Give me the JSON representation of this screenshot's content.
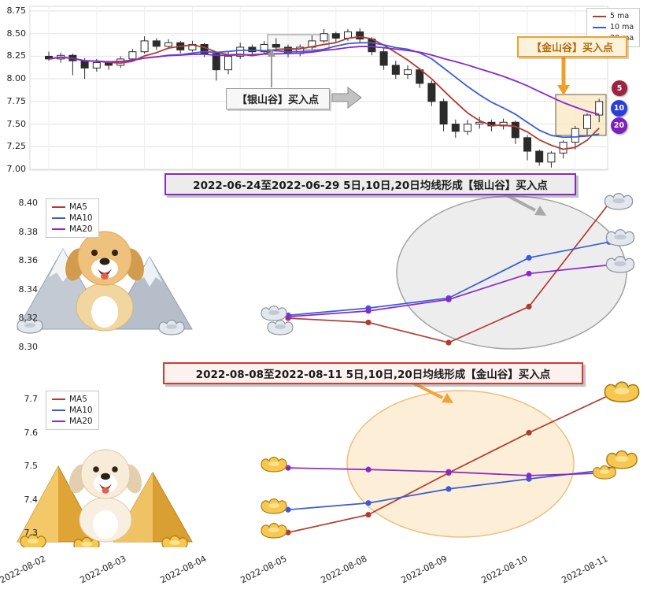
{
  "figure": {
    "background": "#ffffff"
  },
  "colors": {
    "ma5": "#b23b2e",
    "ma10": "#3a5bd9",
    "ma20": "#8b27c9",
    "grid": "#e3e3e3",
    "candle_up": "#ffffff",
    "candle_down": "#2b2b2b",
    "silver_accent": "#9a9a9a",
    "gold_accent": "#efa02a"
  },
  "chart_data": [
    {
      "name": "candlestick-panel",
      "type": "candlestick",
      "legend": [
        {
          "label": "5 ma",
          "color": "#b23b2e"
        },
        {
          "label": "10 ma",
          "color": "#3a5bd9"
        },
        {
          "label": "20 ma",
          "color": "#8b27c9"
        }
      ],
      "y_ticks": [
        "8.75",
        "8.50",
        "8.25",
        "8.00",
        "7.75",
        "7.50",
        "7.25",
        "7.00"
      ],
      "ylim": [
        6.99,
        8.8
      ],
      "ma_windows": [
        5,
        10,
        20
      ],
      "candles_ohlc": [
        [
          8.25,
          8.3,
          8.2,
          8.22
        ],
        [
          8.22,
          8.29,
          8.18,
          8.26
        ],
        [
          8.26,
          8.28,
          8.04,
          8.2
        ],
        [
          8.2,
          8.23,
          8.0,
          8.12
        ],
        [
          8.12,
          8.22,
          8.08,
          8.18
        ],
        [
          8.18,
          8.2,
          8.1,
          8.15
        ],
        [
          8.15,
          8.25,
          8.12,
          8.22
        ],
        [
          8.22,
          8.33,
          8.2,
          8.3
        ],
        [
          8.3,
          8.47,
          8.28,
          8.42
        ],
        [
          8.42,
          8.45,
          8.32,
          8.36
        ],
        [
          8.36,
          8.44,
          8.33,
          8.4
        ],
        [
          8.4,
          8.42,
          8.28,
          8.32
        ],
        [
          8.32,
          8.42,
          8.3,
          8.38
        ],
        [
          8.38,
          8.4,
          8.24,
          8.28
        ],
        [
          8.28,
          8.3,
          7.98,
          8.1
        ],
        [
          8.1,
          8.3,
          8.05,
          8.25
        ],
        [
          8.25,
          8.4,
          8.22,
          8.35
        ],
        [
          8.35,
          8.38,
          8.26,
          8.3
        ],
        [
          8.3,
          8.42,
          8.28,
          8.38
        ],
        [
          8.38,
          8.45,
          8.3,
          8.35
        ],
        [
          8.35,
          8.38,
          8.24,
          8.28
        ],
        [
          8.28,
          8.38,
          8.25,
          8.35
        ],
        [
          8.35,
          8.48,
          8.32,
          8.42
        ],
        [
          8.42,
          8.55,
          8.4,
          8.5
        ],
        [
          8.5,
          8.52,
          8.4,
          8.45
        ],
        [
          8.45,
          8.55,
          8.42,
          8.52
        ],
        [
          8.52,
          8.56,
          8.4,
          8.44
        ],
        [
          8.44,
          8.46,
          8.26,
          8.3
        ],
        [
          8.3,
          8.34,
          8.1,
          8.15
        ],
        [
          8.15,
          8.2,
          8.0,
          8.05
        ],
        [
          8.05,
          8.15,
          8.0,
          8.1
        ],
        [
          8.1,
          8.12,
          7.9,
          7.95
        ],
        [
          7.95,
          7.98,
          7.7,
          7.75
        ],
        [
          7.75,
          7.78,
          7.42,
          7.5
        ],
        [
          7.5,
          7.55,
          7.35,
          7.42
        ],
        [
          7.42,
          7.55,
          7.38,
          7.5
        ],
        [
          7.5,
          7.58,
          7.45,
          7.52
        ],
        [
          7.52,
          7.55,
          7.42,
          7.48
        ],
        [
          7.48,
          7.56,
          7.44,
          7.52
        ],
        [
          7.52,
          7.54,
          7.28,
          7.35
        ],
        [
          7.35,
          7.38,
          7.1,
          7.2
        ],
        [
          7.2,
          7.22,
          7.04,
          7.08
        ],
        [
          7.08,
          7.2,
          7.02,
          7.18
        ],
        [
          7.18,
          7.32,
          7.12,
          7.3
        ],
        [
          7.3,
          7.48,
          7.22,
          7.45
        ],
        [
          7.45,
          7.62,
          7.38,
          7.6
        ],
        [
          7.6,
          7.78,
          7.52,
          7.75
        ]
      ],
      "annotations": [
        {
          "label": "【银山谷】买入点",
          "style": "silver"
        },
        {
          "label": "【金山谷】买入点",
          "style": "gold"
        }
      ],
      "end_badges": [
        {
          "label": "5",
          "color": "#9c2440"
        },
        {
          "label": "10",
          "color": "#2b3fd6"
        },
        {
          "label": "20",
          "color": "#7d1fbf"
        }
      ]
    },
    {
      "name": "silver-valley-panel",
      "type": "line",
      "title": "2022-06-24至2022-06-29 5日,10日,20日均线形成【银山谷】买入点",
      "y_ticks": [
        "8.40",
        "8.38",
        "8.36",
        "8.34",
        "8.32",
        "8.30"
      ],
      "ylim": [
        8.295,
        8.405
      ],
      "x_slots": 8,
      "start_slot": 3,
      "series": [
        {
          "name": "MA5",
          "color": "#b23b2e",
          "values": [
            8.32,
            8.317,
            8.303,
            8.328,
            8.4
          ]
        },
        {
          "name": "MA10",
          "color": "#3a5bd9",
          "values": [
            8.322,
            8.327,
            8.334,
            8.362,
            8.373
          ]
        },
        {
          "name": "MA20",
          "color": "#8b27c9",
          "values": [
            8.321,
            8.325,
            8.333,
            8.351,
            8.357
          ]
        }
      ]
    },
    {
      "name": "golden-valley-panel",
      "type": "line",
      "title": "2022-08-08至2022-08-11 5日,10日,20日均线形成【金山谷】买入点",
      "y_ticks": [
        "7.7",
        "7.6",
        "7.5",
        "7.4",
        "7.3"
      ],
      "ylim": [
        7.27,
        7.73
      ],
      "x_labels": [
        "2022-08-02",
        "2022-08-03",
        "2022-08-04",
        "2022-08-05",
        "2022-08-08",
        "2022-08-09",
        "2022-08-10",
        "2022-08-11"
      ],
      "start_slot": 3,
      "series": [
        {
          "name": "MA5",
          "color": "#b23b2e",
          "values": [
            7.302,
            7.355,
            7.48,
            7.6,
            7.712
          ]
        },
        {
          "name": "MA10",
          "color": "#3a5bd9",
          "values": [
            7.37,
            7.39,
            7.432,
            7.462,
            7.49
          ]
        },
        {
          "name": "MA20",
          "color": "#8b27c9",
          "values": [
            7.495,
            7.49,
            7.483,
            7.472,
            7.48
          ]
        }
      ]
    }
  ]
}
